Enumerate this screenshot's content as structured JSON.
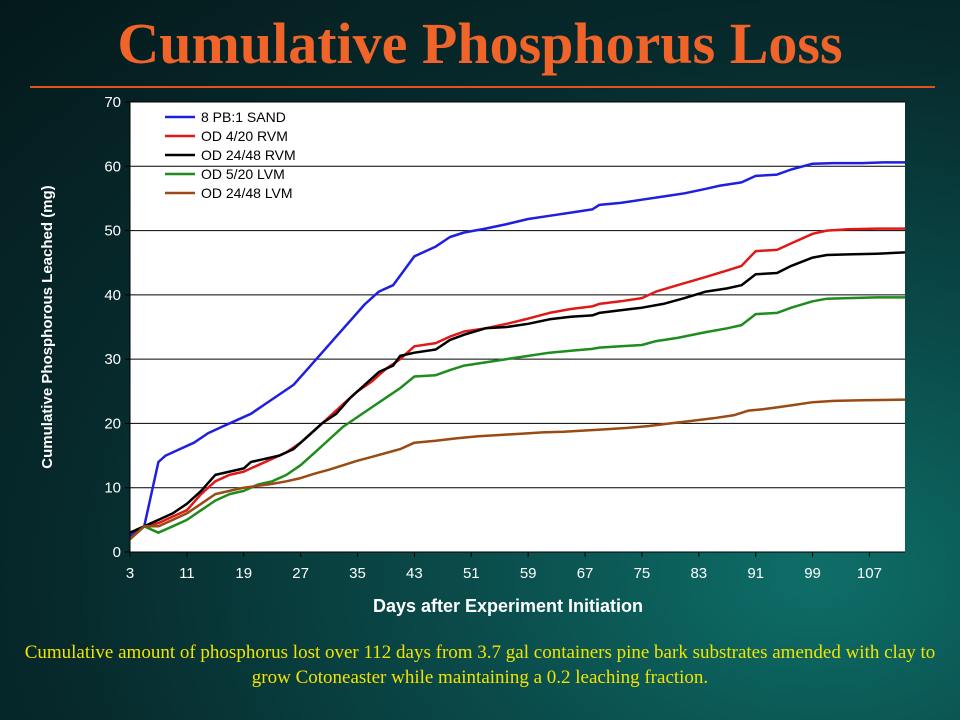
{
  "slide": {
    "title": "Cumulative Phosphorus Loss",
    "caption": "Cumulative amount of phosphorus lost over 112 days from 3.7 gal containers pine bark substrates amended with clay to grow Cotoneaster while maintaining a 0.2 leaching fraction.",
    "title_color": "#f0642a",
    "caption_color": "#f3e400",
    "rule_color": "#e8501e"
  },
  "chart_data": {
    "type": "line",
    "title": "",
    "xlabel": "Days after Experiment Initiation",
    "ylabel": "Cumulative Phosphorous Leached (mg)",
    "xlim": [
      3,
      112
    ],
    "ylim": [
      0,
      70
    ],
    "x_ticks": [
      3,
      11,
      19,
      27,
      35,
      43,
      51,
      59,
      67,
      75,
      83,
      91,
      99,
      107
    ],
    "y_ticks": [
      0,
      10,
      20,
      30,
      40,
      50,
      60,
      70
    ],
    "grid": true,
    "legend_position": "top-left",
    "series": [
      {
        "name": "8 PB:1 SAND",
        "color": "#1f1fe0",
        "x": [
          3,
          5,
          7,
          8,
          10,
          12,
          14,
          16,
          18,
          20,
          22,
          24,
          26,
          28,
          30,
          32,
          34,
          36,
          38,
          40,
          41,
          43,
          46,
          48,
          50,
          53,
          56,
          59,
          62,
          65,
          68,
          69,
          72,
          75,
          78,
          81,
          84,
          86,
          89,
          91,
          94,
          96,
          99,
          102,
          106,
          109,
          112
        ],
        "y": [
          2.5,
          4,
          14,
          15,
          16,
          17,
          18.5,
          19.5,
          20.5,
          21.5,
          23,
          24.5,
          26,
          28.5,
          31,
          33.5,
          36,
          38.5,
          40.5,
          41.5,
          43,
          46,
          47.5,
          49,
          49.7,
          50.3,
          51,
          51.8,
          52.3,
          52.8,
          53.3,
          54,
          54.3,
          54.8,
          55.3,
          55.8,
          56.5,
          57,
          57.5,
          58.5,
          58.7,
          59.5,
          60.4,
          60.5,
          60.5,
          60.6,
          60.6
        ]
      },
      {
        "name": "OD 4/20 RVM",
        "color": "#e01818",
        "x": [
          3,
          5,
          7,
          9,
          11,
          13,
          15,
          17,
          19,
          21,
          23,
          25,
          27,
          29,
          31,
          33,
          35,
          37,
          39,
          41,
          43,
          46,
          48,
          50,
          53,
          56,
          59,
          62,
          65,
          68,
          69,
          72,
          75,
          77,
          80,
          84,
          87,
          89,
          91,
          94,
          96,
          99,
          101,
          104,
          108,
          112
        ],
        "y": [
          2,
          4,
          4.5,
          5.5,
          6.5,
          9,
          11,
          12,
          12.5,
          13.5,
          14.5,
          15.5,
          17,
          19,
          21,
          23,
          25,
          26.5,
          28.5,
          30,
          32,
          32.5,
          33.5,
          34.3,
          34.8,
          35.5,
          36.3,
          37.2,
          37.8,
          38.2,
          38.6,
          39,
          39.5,
          40.5,
          41.5,
          42.8,
          43.8,
          44.5,
          46.8,
          47,
          48,
          49.5,
          50,
          50.2,
          50.3,
          50.3
        ]
      },
      {
        "name": "OD 24/48 RVM",
        "color": "#000000",
        "x": [
          3,
          5,
          7,
          9,
          11,
          13,
          15,
          17,
          19,
          20,
          22,
          24,
          26,
          28,
          30,
          32,
          34,
          36,
          38,
          40,
          41,
          43,
          46,
          48,
          50,
          53,
          56,
          59,
          62,
          65,
          68,
          69,
          72,
          75,
          78,
          81,
          84,
          87,
          89,
          91,
          94,
          96,
          99,
          101,
          104,
          108,
          112
        ],
        "y": [
          3,
          4,
          5,
          6,
          7.5,
          9.5,
          12,
          12.5,
          13,
          14,
          14.5,
          15,
          16,
          18,
          20,
          21.5,
          24,
          26,
          28,
          29,
          30.5,
          31,
          31.5,
          33,
          33.8,
          34.8,
          35,
          35.5,
          36.2,
          36.6,
          36.8,
          37.2,
          37.6,
          38,
          38.6,
          39.5,
          40.5,
          41,
          41.5,
          43.2,
          43.4,
          44.5,
          45.8,
          46.2,
          46.3,
          46.4,
          46.6
        ]
      },
      {
        "name": "OD 5/20 LVM",
        "color": "#1e8c1e",
        "x": [
          3,
          5,
          7,
          9,
          11,
          13,
          15,
          17,
          19,
          21,
          23,
          25,
          27,
          29,
          31,
          33,
          35,
          37,
          39,
          41,
          43,
          46,
          48,
          50,
          53,
          56,
          59,
          62,
          65,
          68,
          69,
          72,
          75,
          77,
          80,
          84,
          87,
          89,
          91,
          94,
          96,
          99,
          101,
          104,
          108,
          112
        ],
        "y": [
          2,
          4,
          3,
          4,
          5,
          6.5,
          8,
          9,
          9.5,
          10.5,
          11,
          12,
          13.5,
          15.5,
          17.5,
          19.5,
          21,
          22.5,
          24,
          25.5,
          27.3,
          27.5,
          28.3,
          29,
          29.5,
          30,
          30.5,
          31,
          31.3,
          31.6,
          31.8,
          32,
          32.2,
          32.8,
          33.3,
          34.2,
          34.8,
          35.3,
          37,
          37.2,
          38,
          39,
          39.4,
          39.5,
          39.6,
          39.6
        ]
      },
      {
        "name": "OD 24/48 LVM",
        "color": "#9a4a14",
        "x": [
          3,
          5,
          7,
          9,
          11,
          13,
          15,
          17,
          19,
          21,
          23,
          25,
          27,
          29,
          31,
          33,
          35,
          37,
          39,
          41,
          43,
          46,
          49,
          52,
          55,
          58,
          61,
          64,
          67,
          70,
          73,
          76,
          79,
          82,
          85,
          88,
          90,
          92,
          94,
          96,
          99,
          102,
          106,
          112
        ],
        "y": [
          2,
          4,
          4,
          5,
          6,
          7.5,
          9,
          9.5,
          10,
          10.3,
          10.6,
          11,
          11.5,
          12.2,
          12.8,
          13.5,
          14.2,
          14.8,
          15.4,
          16,
          17,
          17.3,
          17.7,
          18,
          18.2,
          18.4,
          18.6,
          18.7,
          18.9,
          19.1,
          19.3,
          19.6,
          20,
          20.4,
          20.8,
          21.3,
          22,
          22.2,
          22.5,
          22.8,
          23.3,
          23.5,
          23.6,
          23.7
        ]
      }
    ]
  }
}
